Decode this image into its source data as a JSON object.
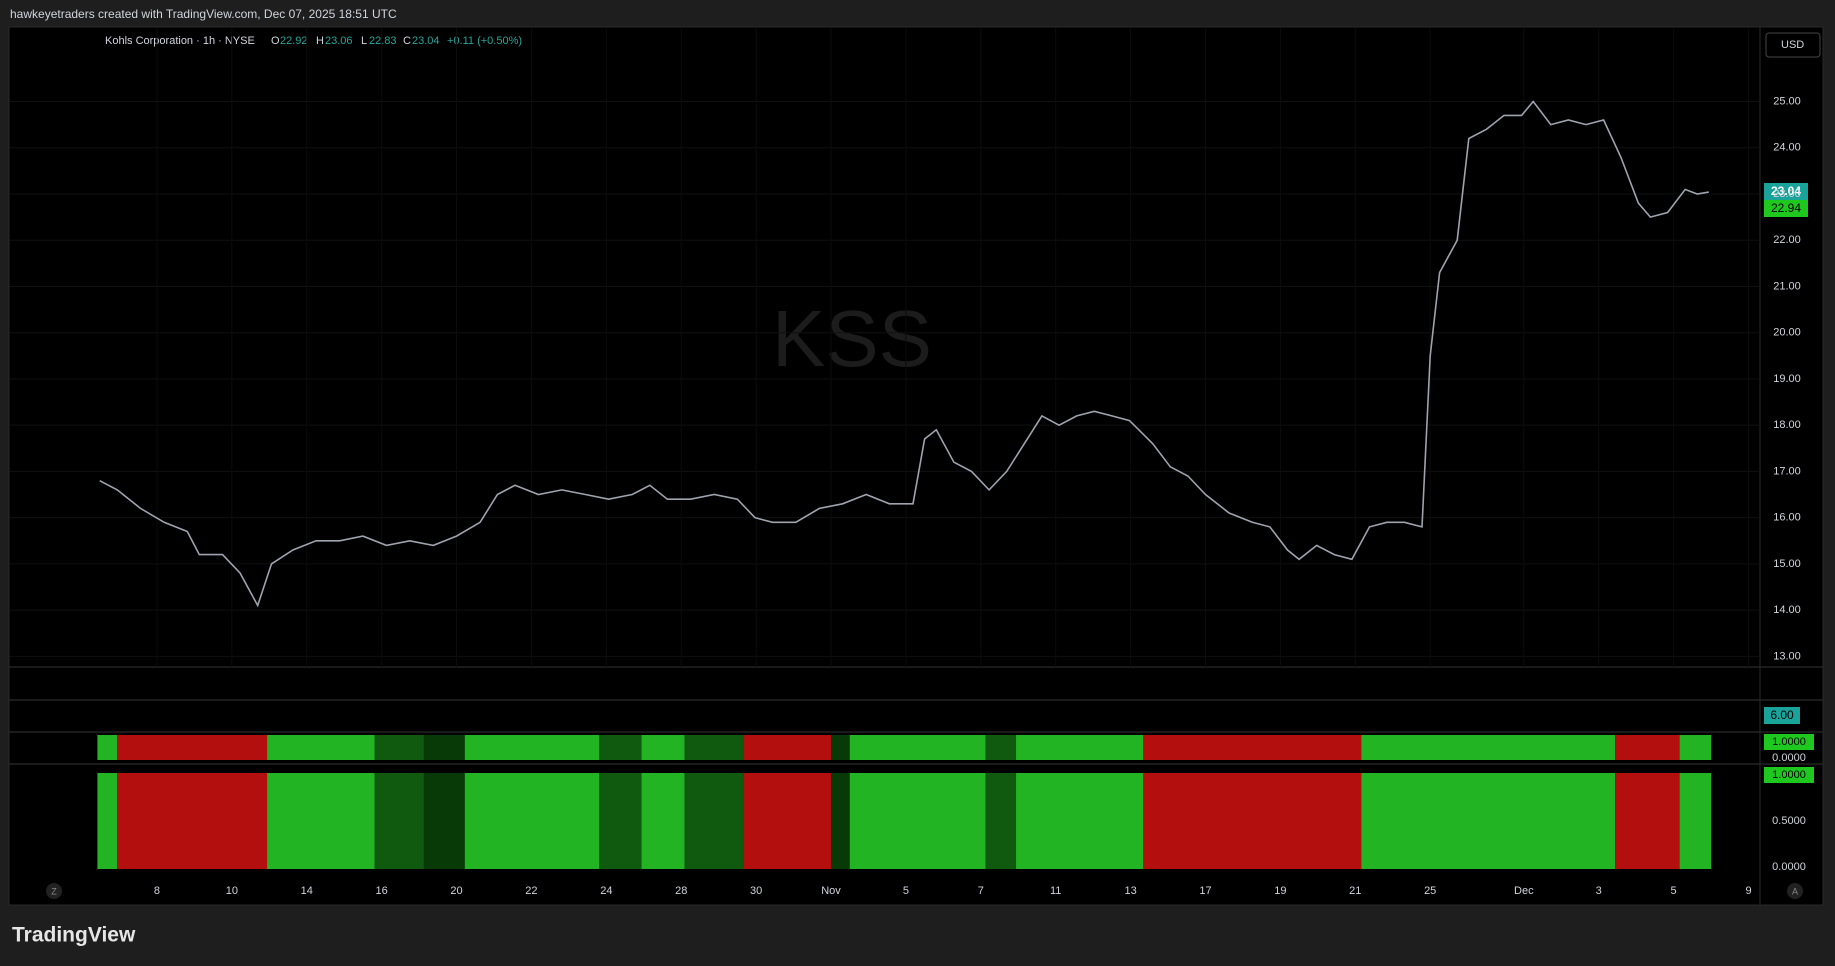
{
  "header": "hawkeyetraders created with TradingView.com, Dec 07, 2025 18:51 UTC",
  "brand": "TradingView",
  "chart_data": {
    "type": "line",
    "legend": {
      "symbol": "Kohls Corporation · 1h · NYSE",
      "o_label": "O",
      "o": "22.92",
      "h_label": "H",
      "h": "23.06",
      "l_label": "L",
      "l": "22.83",
      "c_label": "C",
      "c": "23.04",
      "change": "+0.11 (+0.50%)"
    },
    "watermark": "KSS",
    "currency": "USD",
    "last_price_labels": [
      "23.04",
      "22.94"
    ],
    "xlim": [
      -3.94,
      42.78
    ],
    "xticks": [
      {
        "value": 0,
        "label": "8"
      },
      {
        "value": 2,
        "label": "10"
      },
      {
        "value": 4,
        "label": "14"
      },
      {
        "value": 6,
        "label": "16"
      },
      {
        "value": 8,
        "label": "20"
      },
      {
        "value": 10,
        "label": "22"
      },
      {
        "value": 12,
        "label": "24"
      },
      {
        "value": 14,
        "label": "28"
      },
      {
        "value": 16,
        "label": "30"
      },
      {
        "value": 18,
        "label": "Nov"
      },
      {
        "value": 20,
        "label": "5"
      },
      {
        "value": 22,
        "label": "7"
      },
      {
        "value": 24,
        "label": "11"
      },
      {
        "value": 26,
        "label": "13"
      },
      {
        "value": 28,
        "label": "17"
      },
      {
        "value": 30,
        "label": "19"
      },
      {
        "value": 32,
        "label": "21"
      },
      {
        "value": 34,
        "label": "25"
      },
      {
        "value": 36.5,
        "label": "Dec"
      },
      {
        "value": 38.5,
        "label": "3"
      },
      {
        "value": 40.5,
        "label": "5"
      },
      {
        "value": 42.5,
        "label": "9"
      }
    ],
    "ylim": [
      12.77,
      26.59
    ],
    "yticks": [
      {
        "value": 13,
        "label": "13.00"
      },
      {
        "value": 14,
        "label": "14.00"
      },
      {
        "value": 15,
        "label": "15.00"
      },
      {
        "value": 16,
        "label": "16.00"
      },
      {
        "value": 17,
        "label": "17.00"
      },
      {
        "value": 18,
        "label": "18.00"
      },
      {
        "value": 19,
        "label": "19.00"
      },
      {
        "value": 20,
        "label": "20.00"
      },
      {
        "value": 21,
        "label": "21.00"
      },
      {
        "value": 22,
        "label": "22.00"
      },
      {
        "value": 23,
        "label": "23.00"
      },
      {
        "value": 24,
        "label": "24.00"
      },
      {
        "value": 25,
        "label": "25.00"
      }
    ],
    "x": [
      -1.53,
      -1.06,
      -0.44,
      0.19,
      0.81,
      1.13,
      1.75,
      2.22,
      2.69,
      3.06,
      3.63,
      4.25,
      4.88,
      5.5,
      6.13,
      6.75,
      7.38,
      8,
      8.63,
      9.09,
      9.56,
      10.19,
      10.81,
      11.44,
      12.06,
      12.69,
      13.16,
      13.63,
      14.25,
      14.88,
      15.5,
      15.97,
      16.44,
      17.06,
      17.69,
      18.31,
      18.94,
      19.56,
      20.19,
      20.5,
      20.81,
      21.28,
      21.75,
      22.22,
      22.69,
      23.16,
      23.63,
      24.09,
      24.56,
      25.03,
      25.5,
      25.97,
      26.59,
      27.06,
      27.53,
      28,
      28.63,
      29.25,
      29.72,
      30.19,
      30.5,
      30.97,
      31.44,
      31.91,
      32.38,
      32.84,
      33.31,
      33.78,
      34,
      34.25,
      34.72,
      35.03,
      35.5,
      35.97,
      36.44,
      36.75,
      37.22,
      37.69,
      38.16,
      38.63,
      39.09,
      39.56,
      39.88,
      40.34,
      40.81,
      41.13,
      41.44
    ],
    "series": [
      {
        "color": "#9ea3ad",
        "values": [
          16.8,
          16.6,
          16.2,
          15.9,
          15.7,
          15.2,
          15.2,
          14.8,
          14.1,
          15.0,
          15.3,
          15.5,
          15.5,
          15.6,
          15.4,
          15.5,
          15.4,
          15.6,
          15.9,
          16.5,
          16.7,
          16.5,
          16.6,
          16.5,
          16.4,
          16.5,
          16.7,
          16.4,
          16.4,
          16.5,
          16.4,
          16.0,
          15.9,
          15.9,
          16.2,
          16.3,
          16.5,
          16.3,
          16.3,
          17.7,
          17.9,
          17.2,
          17.0,
          16.6,
          17.0,
          17.6,
          18.2,
          18.0,
          18.2,
          18.3,
          18.2,
          18.1,
          17.6,
          17.1,
          16.9,
          16.5,
          16.1,
          15.9,
          15.8,
          15.3,
          15.1,
          15.4,
          15.2,
          15.1,
          15.8,
          15.9,
          15.9,
          15.8,
          19.5,
          21.3,
          22.0,
          24.2,
          24.4,
          24.7,
          24.7,
          25.0,
          24.5,
          24.6,
          24.5,
          24.6,
          23.8,
          22.8,
          22.5,
          22.6,
          23.1,
          23.0,
          23.04
        ]
      }
    ],
    "regimes": [
      {
        "from": -1.59,
        "to": -1.06,
        "color": "#22b422"
      },
      {
        "from": -1.06,
        "to": 2.94,
        "color": "#b40f0f"
      },
      {
        "from": 2.94,
        "to": 5.81,
        "color": "#22b422"
      },
      {
        "from": 5.81,
        "to": 7.13,
        "color": "#0f5a0f"
      },
      {
        "from": 7.13,
        "to": 8.22,
        "color": "#083a08"
      },
      {
        "from": 8.22,
        "to": 11.81,
        "color": "#22b422"
      },
      {
        "from": 11.81,
        "to": 12.94,
        "color": "#0f5a0f"
      },
      {
        "from": 12.94,
        "to": 14.09,
        "color": "#22b422"
      },
      {
        "from": 14.09,
        "to": 15.66,
        "color": "#0f5a0f"
      },
      {
        "from": 15.66,
        "to": 18,
        "color": "#b40f0f"
      },
      {
        "from": 18,
        "to": 18.5,
        "color": "#083a08"
      },
      {
        "from": 18.5,
        "to": 22.13,
        "color": "#22b422"
      },
      {
        "from": 22.13,
        "to": 22.94,
        "color": "#0f5a0f"
      },
      {
        "from": 22.94,
        "to": 26.34,
        "color": "#22b422"
      },
      {
        "from": 26.34,
        "to": 32.16,
        "color": "#b40f0f"
      },
      {
        "from": 32.16,
        "to": 38.94,
        "color": "#22b422"
      },
      {
        "from": 38.94,
        "to": 40.66,
        "color": "#b40f0f"
      },
      {
        "from": 40.66,
        "to": 41.5,
        "color": "#22b422"
      }
    ],
    "panel1_labels": [
      "6.00"
    ],
    "panel2_labels": [
      "1.0000",
      "0.0000"
    ],
    "panel3_labels": [
      "1.0000",
      "0.5000",
      "0.0000"
    ],
    "corner_left": "Z",
    "corner_right": "A"
  }
}
